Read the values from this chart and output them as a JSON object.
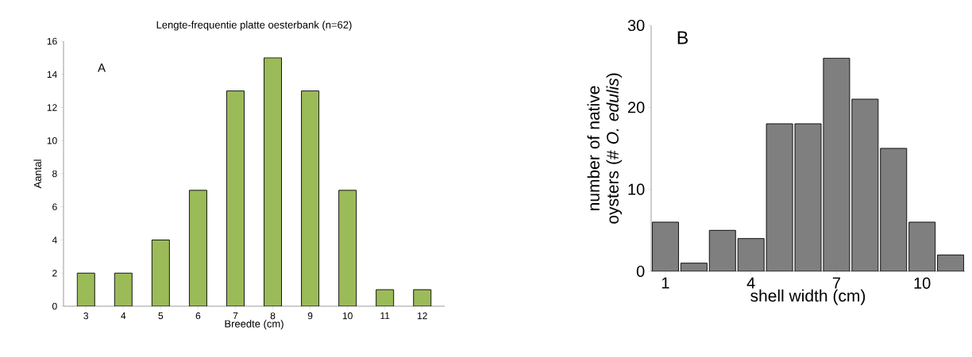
{
  "chart_data": [
    {
      "type": "bar",
      "title": "Lengte-frequentie platte oesterbank (n=62)",
      "xlabel": "Breedte (cm)",
      "ylabel": "Aantal",
      "categories": [
        "3",
        "4",
        "5",
        "6",
        "7",
        "8",
        "9",
        "10",
        "11",
        "12"
      ],
      "values": [
        2,
        2,
        4,
        7,
        13,
        15,
        13,
        7,
        1,
        1
      ],
      "color": "#9bbb59",
      "ylim": [
        0,
        16
      ],
      "yticks": [
        0,
        2,
        4,
        6,
        8,
        10,
        12,
        14,
        16
      ],
      "annotations": [
        "A"
      ]
    },
    {
      "type": "bar",
      "xlabel": "shell width (cm)",
      "ylabel": "number of native oysters (# *O. edulis*)",
      "x": [
        1,
        2,
        3,
        4,
        5,
        6,
        7,
        8,
        9,
        10,
        11
      ],
      "values": [
        6,
        1,
        5,
        4,
        18,
        18,
        26,
        21,
        15,
        6,
        2
      ],
      "color": "#7f7f7f",
      "xlim": [
        0.5,
        11.5
      ],
      "xticks": [
        1,
        4,
        7,
        10
      ],
      "ylim": [
        0,
        30
      ],
      "yticks": [
        0,
        10,
        20,
        30
      ],
      "annotations": [
        "B"
      ]
    }
  ]
}
